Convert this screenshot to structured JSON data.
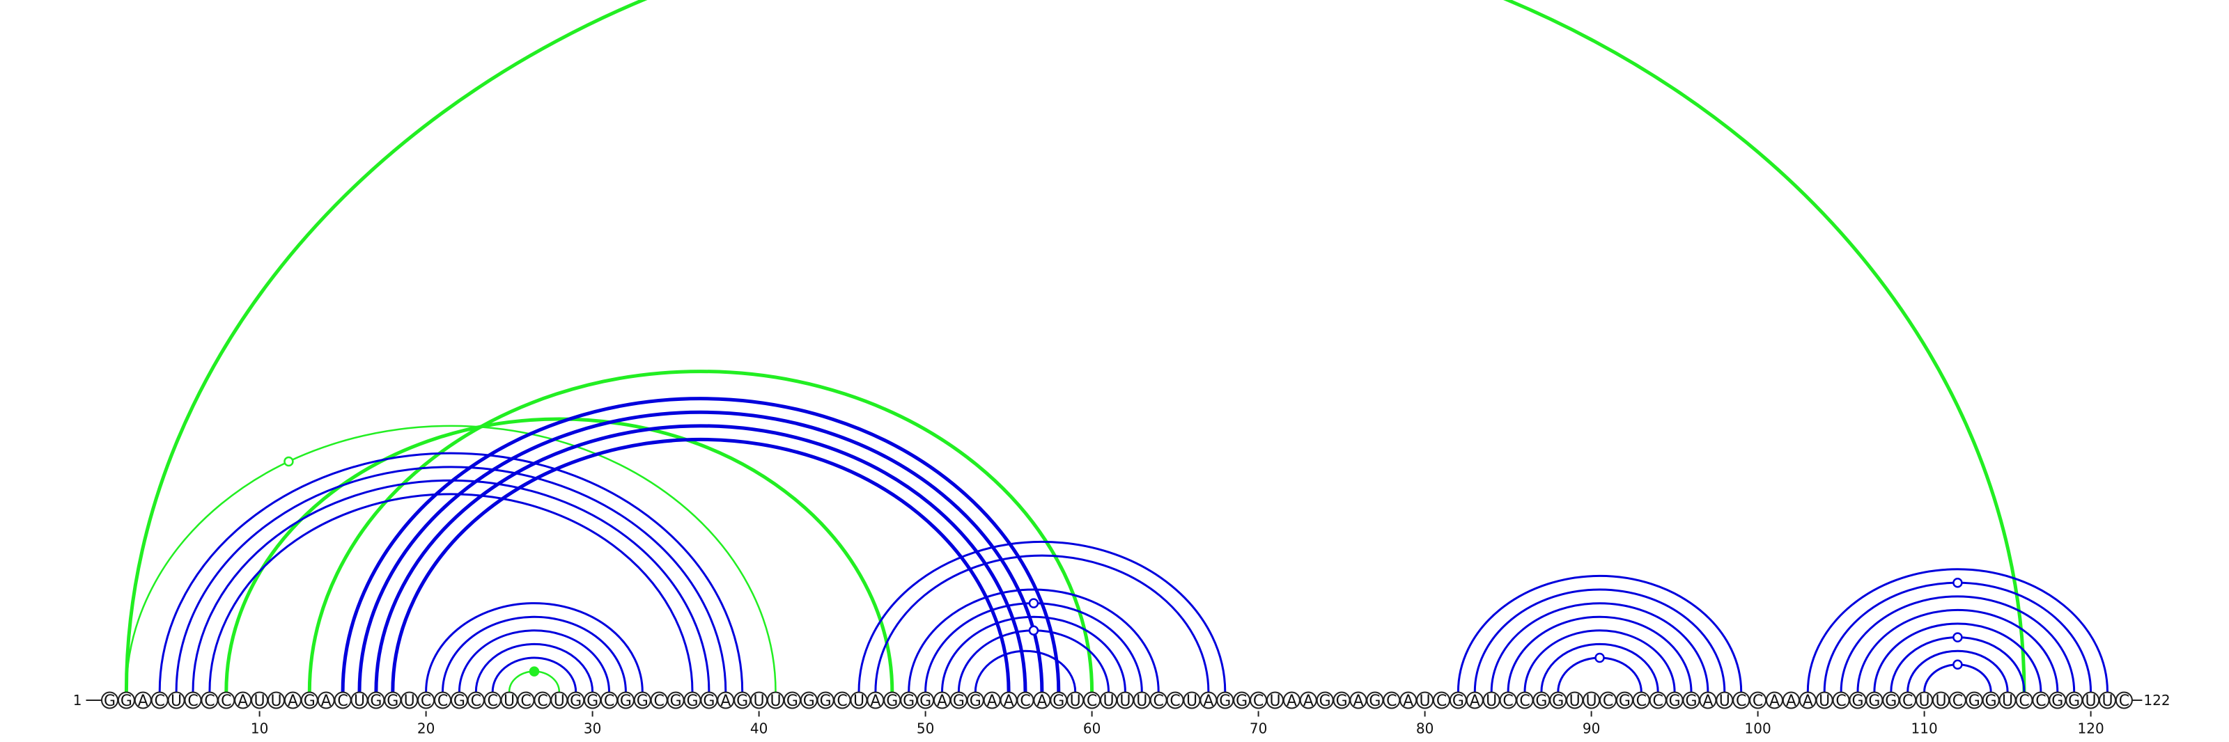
{
  "sequence": "GGACUCCCAUUAGACUGGUCCGCCUCCUGGCGGCGGGAGUUGGGCUAGGGAGGAACAGUCUUUCCUAGGCUAAGGAGCAUCGAUCCGGUUCGCCGGAUCCAAAUCGGGCUUCGGUCCGGUUC",
  "start_label": "1",
  "end_label": "122",
  "ticks": [
    10,
    20,
    30,
    40,
    50,
    60,
    70,
    80,
    90,
    100,
    110,
    120
  ],
  "colors": {
    "paired": "#0000dd",
    "green": "#22ee22",
    "text": "#111111"
  },
  "arcs": [
    {
      "i": 2,
      "j": 116,
      "color": "green",
      "weight": "thick"
    },
    {
      "i": 2,
      "j": 41,
      "color": "green",
      "weight": "thin",
      "marker": "open",
      "marker_offset": -0.25
    },
    {
      "i": 8,
      "j": 48,
      "color": "green",
      "weight": "thick"
    },
    {
      "i": 13,
      "j": 60,
      "color": "green",
      "weight": "thick"
    },
    {
      "i": 25,
      "j": 28,
      "color": "green",
      "weight": "thin",
      "marker": "filled"
    },
    {
      "i": 4,
      "j": 39,
      "color": "blue"
    },
    {
      "i": 5,
      "j": 38,
      "color": "blue"
    },
    {
      "i": 6,
      "j": 37,
      "color": "blue"
    },
    {
      "i": 7,
      "j": 36,
      "color": "blue"
    },
    {
      "i": 15,
      "j": 58,
      "color": "blue",
      "weight": "thick"
    },
    {
      "i": 16,
      "j": 57,
      "color": "blue",
      "weight": "thick"
    },
    {
      "i": 17,
      "j": 56,
      "color": "blue",
      "weight": "thick"
    },
    {
      "i": 18,
      "j": 55,
      "color": "blue",
      "weight": "thick"
    },
    {
      "i": 20,
      "j": 33,
      "color": "blue"
    },
    {
      "i": 21,
      "j": 32,
      "color": "blue"
    },
    {
      "i": 22,
      "j": 31,
      "color": "blue"
    },
    {
      "i": 23,
      "j": 30,
      "color": "blue"
    },
    {
      "i": 24,
      "j": 29,
      "color": "blue"
    },
    {
      "i": 46,
      "j": 68,
      "color": "blue"
    },
    {
      "i": 47,
      "j": 67,
      "color": "blue"
    },
    {
      "i": 49,
      "j": 64,
      "color": "blue"
    },
    {
      "i": 50,
      "j": 63,
      "color": "blue",
      "marker": "open"
    },
    {
      "i": 51,
      "j": 62,
      "color": "blue"
    },
    {
      "i": 52,
      "j": 61,
      "color": "blue",
      "marker": "open"
    },
    {
      "i": 53,
      "j": 59,
      "color": "blue"
    },
    {
      "i": 82,
      "j": 99,
      "color": "blue"
    },
    {
      "i": 83,
      "j": 98,
      "color": "blue"
    },
    {
      "i": 84,
      "j": 97,
      "color": "blue"
    },
    {
      "i": 85,
      "j": 96,
      "color": "blue"
    },
    {
      "i": 86,
      "j": 95,
      "color": "blue"
    },
    {
      "i": 87,
      "j": 94,
      "color": "blue"
    },
    {
      "i": 88,
      "j": 93,
      "color": "blue",
      "marker": "open"
    },
    {
      "i": 103,
      "j": 121,
      "color": "blue"
    },
    {
      "i": 104,
      "j": 120,
      "color": "blue",
      "marker": "open"
    },
    {
      "i": 105,
      "j": 119,
      "color": "blue"
    },
    {
      "i": 106,
      "j": 118,
      "color": "blue"
    },
    {
      "i": 107,
      "j": 117,
      "color": "blue"
    },
    {
      "i": 108,
      "j": 116,
      "color": "blue",
      "marker": "open"
    },
    {
      "i": 109,
      "j": 115,
      "color": "blue"
    },
    {
      "i": 110,
      "j": 114,
      "color": "blue",
      "marker": "open"
    }
  ]
}
